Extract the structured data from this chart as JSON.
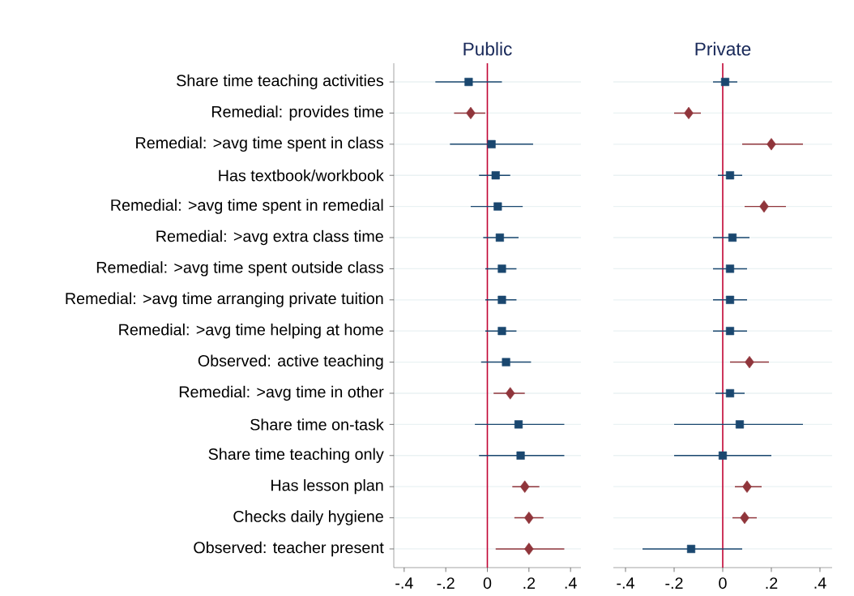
{
  "chart_data": [
    {
      "type": "scatter",
      "orientation": "horizontal",
      "title": "Public",
      "categories": [
        "Share time teaching activities",
        "Remedial: provides time",
        "Remedial: >avg time spent in class",
        "Has textbook/workbook",
        "Remedial: >avg time spent in remedial",
        "Remedial: >avg extra class time",
        "Remedial: >avg time spent outside class",
        "Remedial: >avg time arranging private tuition",
        "Remedial: >avg time helping at home",
        "Observed: active teaching",
        "Remedial: >avg time in other",
        "Share time on-task",
        "Share time teaching only",
        "Has lesson plan",
        "Checks daily hygiene",
        "Observed: teacher present"
      ],
      "xlim": [
        -0.45,
        0.45
      ],
      "xticks": [
        {
          "value": -0.4,
          "label": "-.4"
        },
        {
          "value": -0.2,
          "label": "-.2"
        },
        0,
        {
          "value": 0.2,
          "label": ".2"
        },
        {
          "value": 0.4,
          "label": ".4"
        }
      ],
      "grid": "y",
      "series": [
        {
          "color": "#1a476f",
          "marker": "square",
          "values": [
            -0.09,
            null,
            0.02,
            0.04,
            0.05,
            0.06,
            0.07,
            0.07,
            0.07,
            0.09,
            null,
            0.15,
            0.16,
            null,
            null,
            null
          ],
          "errors": [
            [
              -0.25,
              0.07
            ],
            null,
            [
              -0.18,
              0.22
            ],
            [
              -0.04,
              0.11
            ],
            [
              -0.08,
              0.17
            ],
            [
              -0.02,
              0.15
            ],
            [
              -0.01,
              0.14
            ],
            [
              -0.01,
              0.14
            ],
            [
              -0.01,
              0.14
            ],
            [
              -0.03,
              0.21
            ],
            null,
            [
              -0.06,
              0.37
            ],
            [
              -0.04,
              0.37
            ],
            null,
            null,
            null
          ]
        },
        {
          "color": "#90353b",
          "marker": "diamond",
          "values": [
            null,
            -0.08,
            null,
            null,
            null,
            null,
            null,
            null,
            null,
            null,
            0.11,
            null,
            null,
            0.18,
            0.2,
            0.2
          ],
          "errors": [
            null,
            [
              -0.16,
              -0.01
            ],
            null,
            null,
            null,
            null,
            null,
            null,
            null,
            null,
            [
              0.03,
              0.18
            ],
            null,
            null,
            [
              0.12,
              0.25
            ],
            [
              0.13,
              0.27
            ],
            [
              0.04,
              0.37
            ]
          ]
        }
      ],
      "ref_lines": [
        {
          "axis": "x",
          "value": 0,
          "color": "#c10534"
        }
      ]
    },
    {
      "type": "scatter",
      "orientation": "horizontal",
      "title": "Private",
      "tick_labels": "x",
      "xlim": [
        -0.45,
        0.45
      ],
      "xticks": [
        {
          "value": -0.4,
          "label": "-.4"
        },
        {
          "value": -0.2,
          "label": "-.2"
        },
        0,
        {
          "value": 0.2,
          "label": ".2"
        },
        {
          "value": 0.4,
          "label": ".4"
        }
      ],
      "grid": "y",
      "series": [
        {
          "color": "#1a476f",
          "marker": "square",
          "values": [
            0.01,
            null,
            null,
            0.03,
            null,
            0.04,
            0.03,
            0.03,
            0.03,
            null,
            0.03,
            0.07,
            0.0,
            null,
            null,
            -0.13
          ],
          "errors": [
            [
              -0.04,
              0.06
            ],
            null,
            null,
            [
              -0.02,
              0.08
            ],
            null,
            [
              -0.04,
              0.11
            ],
            [
              -0.04,
              0.1
            ],
            [
              -0.04,
              0.1
            ],
            [
              -0.04,
              0.1
            ],
            null,
            [
              -0.03,
              0.09
            ],
            [
              -0.2,
              0.33
            ],
            [
              -0.2,
              0.2
            ],
            null,
            null,
            [
              -0.33,
              0.08
            ]
          ]
        },
        {
          "color": "#90353b",
          "marker": "diamond",
          "values": [
            null,
            -0.14,
            0.2,
            null,
            0.17,
            null,
            null,
            null,
            null,
            0.11,
            null,
            null,
            null,
            0.1,
            0.09,
            null
          ],
          "errors": [
            null,
            [
              -0.2,
              -0.09
            ],
            [
              0.08,
              0.33
            ],
            null,
            [
              0.09,
              0.26
            ],
            null,
            null,
            null,
            null,
            [
              0.03,
              0.19
            ],
            null,
            null,
            null,
            [
              0.05,
              0.16
            ],
            [
              0.04,
              0.14
            ],
            null
          ]
        }
      ],
      "ref_lines": [
        {
          "axis": "x",
          "value": 0,
          "color": "#c10534"
        }
      ]
    }
  ]
}
